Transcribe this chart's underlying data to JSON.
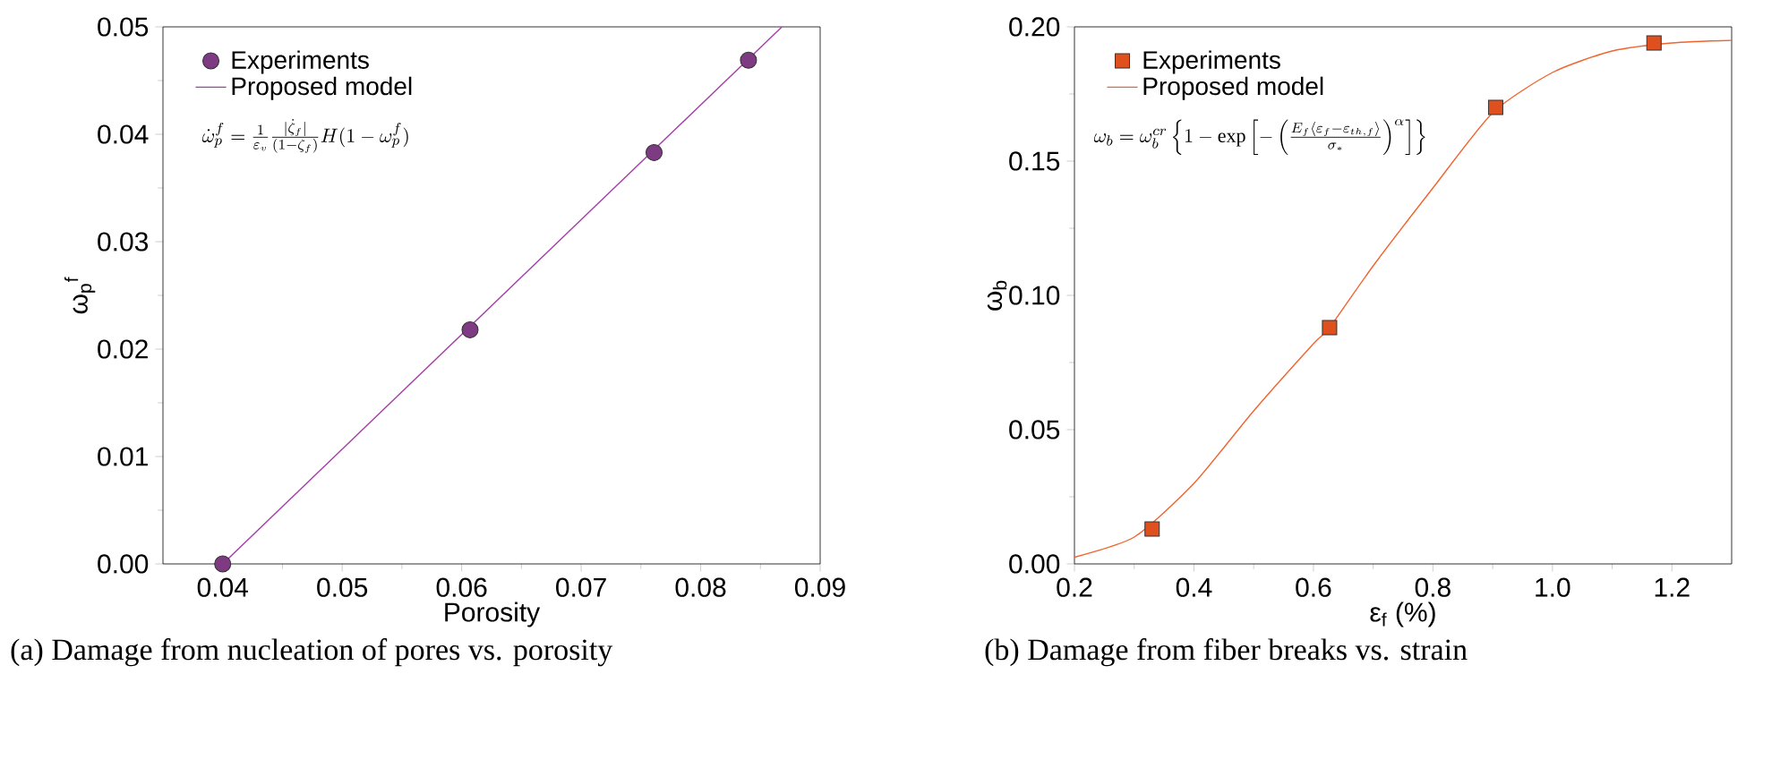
{
  "chart_data": [
    {
      "type": "scatter",
      "xlabel": "Porosity",
      "ylabel": "ω$_{p}$$^{f}$",
      "xlim": [
        0.035,
        0.09
      ],
      "ylim": [
        0,
        0.05
      ],
      "xticks": [
        0.04,
        0.05,
        0.06,
        0.07,
        0.08,
        0.09
      ],
      "yticks": [
        {
          "value": 0,
          "label": "0.00"
        },
        0.01,
        0.02,
        0.03,
        0.04,
        0.05
      ],
      "legend": "top left",
      "grid": false,
      "series": [
        {
          "name": "Experiments",
          "marker": "circle",
          "color": "#7e3a82",
          "x": [
            0.04,
            0.0607,
            0.0761,
            0.084
          ],
          "values": [
            0,
            0.0218,
            0.0383,
            0.0469
          ]
        },
        {
          "name": "Proposed model",
          "type": "line",
          "marker": "none",
          "color": "#a53fa8",
          "x": [
            0.04,
            0.0868
          ],
          "values": [
            0,
            0.05
          ]
        }
      ],
      "annotations": [
        "\\dot{\\omega}_p^f=\\frac{1}{\\varepsilon_v}\\frac{|\\dot{\\zeta}_f|}{(1-\\zeta_f)}H(1-\\omega_p^f)",
        "(a) Damage from nucleation of pores vs. porosity"
      ]
    },
    {
      "type": "scatter",
      "xlabel": "ε$_{f}$ (%)",
      "ylabel": "ω$_{b}$",
      "xlim": [
        0.2,
        1.3
      ],
      "ylim": [
        0,
        0.2
      ],
      "xticks": [
        0.2,
        0.4,
        0.6,
        0.8,
        {
          "value": 1,
          "label": "1.0"
        },
        1.2
      ],
      "yticks": [
        {
          "value": 0,
          "label": "0.00"
        },
        0.05,
        {
          "value": 0.1,
          "label": "0.10"
        },
        0.15,
        {
          "value": 0.2,
          "label": "0.20"
        }
      ],
      "legend": "top left",
      "grid": false,
      "series": [
        {
          "name": "Experiments",
          "marker": "square",
          "color": "#e0501e",
          "x": [
            0.33,
            0.627,
            0.905,
            1.17
          ],
          "values": [
            0.013,
            0.088,
            0.17,
            0.194
          ]
        },
        {
          "name": "Proposed model",
          "type": "line",
          "marker": "none",
          "color": "#f0642e",
          "x": [
            0.2,
            0.3,
            0.4,
            0.5,
            0.6,
            0.627,
            0.7,
            0.8,
            0.9,
            1.0,
            1.1,
            1.2,
            1.3
          ],
          "values": [
            0.0025,
            0.01,
            0.03,
            0.057,
            0.082,
            0.088,
            0.111,
            0.14,
            0.168,
            0.183,
            0.191,
            0.194,
            0.195
          ]
        }
      ],
      "annotations": [
        "\\omega_b=\\omega_b^{cr}\\left\\{1-\\exp\\left[-\\left(\\frac{E_f\\langle\\varepsilon_f-\\varepsilon_{th,f}\\rangle}{\\sigma_*}\\right)^{\\alpha}\\right]\\right\\}",
        "(b) Damage from fiber breaks vs. strain"
      ]
    }
  ]
}
